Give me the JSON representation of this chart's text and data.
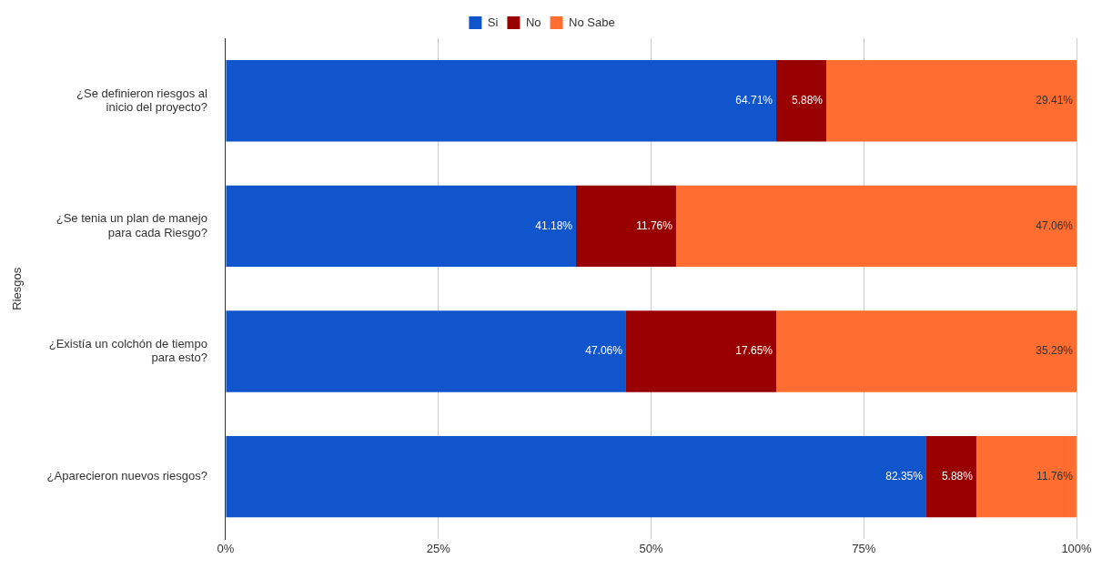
{
  "chart_data": {
    "type": "bar",
    "orientation": "horizontal",
    "stacked": true,
    "ylabel": "Riesgos",
    "categories": [
      "¿Se definieron riesgos al inicio del proyecto?",
      "¿Se tenia un plan de manejo para cada Riesgo?",
      "¿Existía un colchón de tiempo para esto?",
      "¿Aparecieron nuevos riesgos?"
    ],
    "series": [
      {
        "name": "Si",
        "color": "#1155cc",
        "values": [
          64.71,
          41.18,
          47.06,
          82.35
        ],
        "value_labels": [
          "64.71%",
          "41.18%",
          "47.06%",
          "82.35%"
        ]
      },
      {
        "name": "No",
        "color": "#990000",
        "values": [
          5.88,
          11.76,
          17.65,
          5.88
        ],
        "value_labels": [
          "5.88%",
          "11.76%",
          "17.65%",
          "5.88%"
        ]
      },
      {
        "name": "No Sabe",
        "color": "#ff6d31",
        "values": [
          29.41,
          47.06,
          35.29,
          11.76
        ],
        "value_labels": [
          "29.41%",
          "47.06%",
          "35.29%",
          "11.76%"
        ]
      }
    ],
    "xlim": [
      0,
      100
    ],
    "xticks": [
      {
        "value": 0,
        "label": "0%"
      },
      {
        "value": 25,
        "label": "25%"
      },
      {
        "value": 50,
        "label": "50%"
      },
      {
        "value": 75,
        "label": "75%"
      },
      {
        "value": 100,
        "label": "100%"
      }
    ],
    "grid": "x",
    "legend": "top"
  }
}
